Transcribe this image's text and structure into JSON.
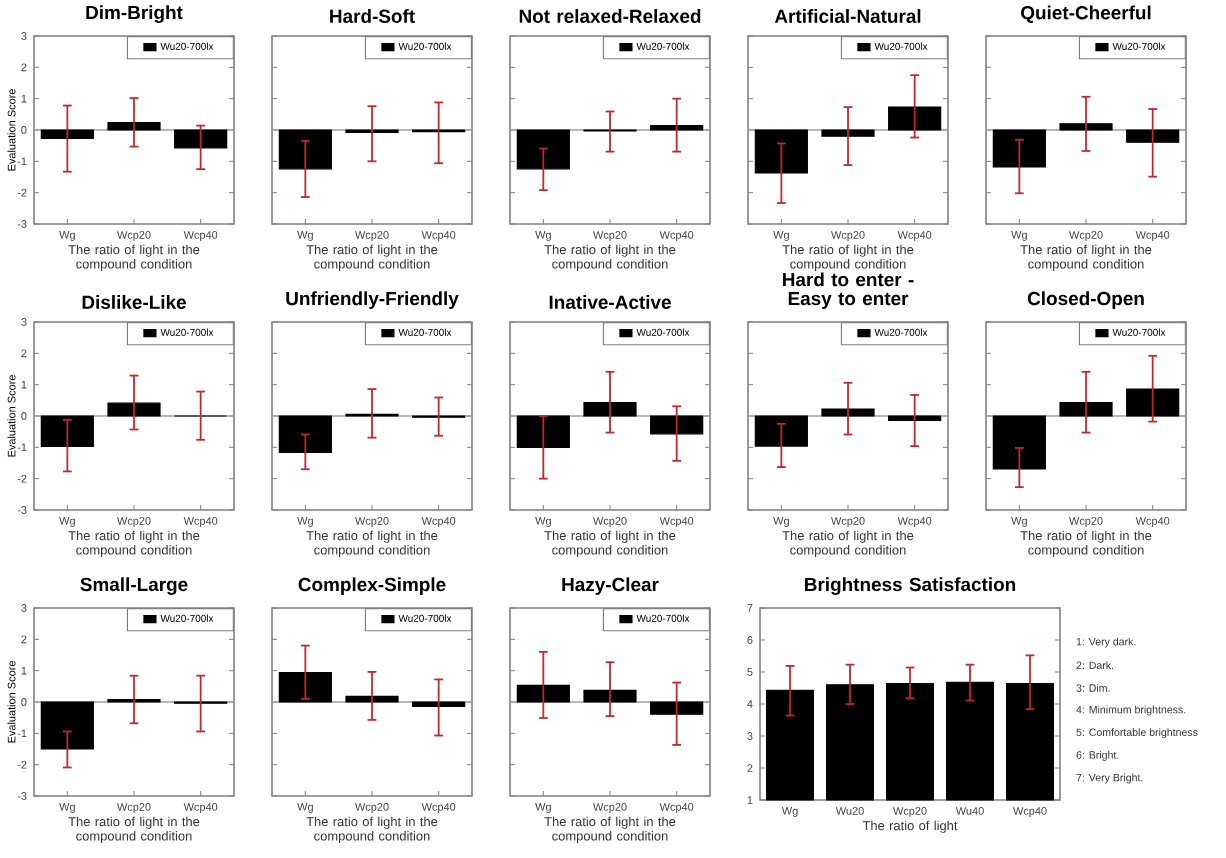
{
  "chart_data": [
    {
      "type": "bar",
      "title": "Dim-Bright",
      "xlabel": "The ratio of light in the compound condition",
      "ylabel": "Evaluation Score",
      "categories": [
        "Wg",
        "Wcp20",
        "Wcp40"
      ],
      "ylim": [
        -3,
        3
      ],
      "yticks": [
        -3,
        -2,
        -1,
        0,
        1,
        2,
        3
      ],
      "legend": "top right",
      "ref_lines": [
        {
          "axis": "y",
          "value": 0,
          "color": "#a0a0a0"
        }
      ],
      "series": [
        {
          "name": "Wu20-700lx",
          "color": "#000000",
          "values": [
            -0.27,
            0.24,
            -0.57
          ],
          "errors": [
            [
              -1.33,
              0.78
            ],
            [
              -0.53,
              1.02
            ],
            [
              -1.25,
              0.14
            ]
          ]
        }
      ]
    },
    {
      "type": "bar",
      "title": "Hard-Soft",
      "xlabel": "The ratio of light in the compound condition",
      "categories": [
        "Wg",
        "Wcp20",
        "Wcp40"
      ],
      "ylim": [
        -3,
        3
      ],
      "yticks": [
        -3,
        -2,
        -1,
        0,
        1,
        2,
        3
      ],
      "tick_labels": "x",
      "legend": "top right",
      "ref_lines": [
        {
          "axis": "y",
          "value": 0,
          "color": "#a0a0a0"
        }
      ],
      "series": [
        {
          "name": "Wu20-700lx",
          "color": "#000000",
          "values": [
            -1.24,
            -0.08,
            -0.05
          ],
          "errors": [
            [
              -2.14,
              -0.35
            ],
            [
              -1.0,
              0.76
            ],
            [
              -1.06,
              0.88
            ]
          ]
        }
      ]
    },
    {
      "type": "bar",
      "title": "Not relaxed-Relaxed",
      "xlabel": "The ratio of light in the compound condition",
      "categories": [
        "Wg",
        "Wcp20",
        "Wcp40"
      ],
      "ylim": [
        -3,
        3
      ],
      "yticks": [
        -3,
        -2,
        -1,
        0,
        1,
        2,
        3
      ],
      "tick_labels": "x",
      "legend": "top right",
      "ref_lines": [
        {
          "axis": "y",
          "value": 0,
          "color": "#a0a0a0"
        }
      ],
      "series": [
        {
          "name": "Wu20-700lx",
          "color": "#000000",
          "values": [
            -1.24,
            -0.03,
            0.14
          ],
          "errors": [
            [
              -1.92,
              -0.59
            ],
            [
              -0.69,
              0.59
            ],
            [
              -0.69,
              1.0
            ]
          ]
        }
      ]
    },
    {
      "type": "bar",
      "title": "Artificial-Natural",
      "xlabel": "The ratio of light in the compound condition",
      "categories": [
        "Wg",
        "Wcp20",
        "Wcp40"
      ],
      "ylim": [
        -3,
        3
      ],
      "yticks": [
        -3,
        -2,
        -1,
        0,
        1,
        2,
        3
      ],
      "tick_labels": "x",
      "legend": "top right",
      "ref_lines": [
        {
          "axis": "y",
          "value": 0,
          "color": "#a0a0a0"
        }
      ],
      "series": [
        {
          "name": "Wu20-700lx",
          "color": "#000000",
          "values": [
            -1.37,
            -0.2,
            0.73
          ],
          "errors": [
            [
              -2.33,
              -0.43
            ],
            [
              -1.12,
              0.73
            ],
            [
              -0.24,
              1.75
            ]
          ]
        }
      ]
    },
    {
      "type": "bar",
      "title": "Quiet-Cheerful",
      "xlabel": "The ratio of light in the compound condition",
      "categories": [
        "Wg",
        "Wcp20",
        "Wcp40"
      ],
      "ylim": [
        -3,
        3
      ],
      "yticks": [
        -3,
        -2,
        -1,
        0,
        1,
        2,
        3
      ],
      "tick_labels": "x",
      "legend": "top right",
      "ref_lines": [
        {
          "axis": "y",
          "value": 0,
          "color": "#a0a0a0"
        }
      ],
      "series": [
        {
          "name": "Wu20-700lx",
          "color": "#000000",
          "values": [
            -1.18,
            0.2,
            -0.39
          ],
          "errors": [
            [
              -2.02,
              -0.31
            ],
            [
              -0.67,
              1.06
            ],
            [
              -1.49,
              0.67
            ]
          ]
        }
      ]
    },
    {
      "type": "bar",
      "title": "Dislike-Like",
      "xlabel": "The ratio of light in the compound condition",
      "ylabel": "Evaluation Score",
      "categories": [
        "Wg",
        "Wcp20",
        "Wcp40"
      ],
      "ylim": [
        -3,
        3
      ],
      "yticks": [
        -3,
        -2,
        -1,
        0,
        1,
        2,
        3
      ],
      "legend": "top right",
      "ref_lines": [
        {
          "axis": "y",
          "value": 0,
          "color": "#a0a0a0"
        }
      ],
      "series": [
        {
          "name": "Wu20-700lx",
          "color": "#000000",
          "values": [
            -0.97,
            0.41,
            0.0
          ],
          "errors": [
            [
              -1.77,
              -0.12
            ],
            [
              -0.43,
              1.29
            ],
            [
              -0.76,
              0.78
            ]
          ]
        }
      ]
    },
    {
      "type": "bar",
      "title": "Unfriendly-Friendly",
      "xlabel": "The ratio of light in the compound condition",
      "categories": [
        "Wg",
        "Wcp20",
        "Wcp40"
      ],
      "ylim": [
        -3,
        3
      ],
      "yticks": [
        -3,
        -2,
        -1,
        0,
        1,
        2,
        3
      ],
      "tick_labels": "x",
      "legend": "top right",
      "ref_lines": [
        {
          "axis": "y",
          "value": 0,
          "color": "#a0a0a0"
        }
      ],
      "series": [
        {
          "name": "Wu20-700lx",
          "color": "#000000",
          "values": [
            -1.16,
            0.05,
            -0.04
          ],
          "errors": [
            [
              -1.7,
              -0.59
            ],
            [
              -0.69,
              0.86
            ],
            [
              -0.63,
              0.59
            ]
          ]
        }
      ]
    },
    {
      "type": "bar",
      "title": "Inative-Active",
      "xlabel": "The ratio of light in the compound condition",
      "categories": [
        "Wg",
        "Wcp20",
        "Wcp40"
      ],
      "ylim": [
        -3,
        3
      ],
      "yticks": [
        -3,
        -2,
        -1,
        0,
        1,
        2,
        3
      ],
      "tick_labels": "x",
      "legend": "top right",
      "ref_lines": [
        {
          "axis": "y",
          "value": 0,
          "color": "#a0a0a0"
        }
      ],
      "series": [
        {
          "name": "Wu20-700lx",
          "color": "#000000",
          "values": [
            -1.0,
            0.43,
            -0.57
          ],
          "errors": [
            [
              -2.0,
              0.0
            ],
            [
              -0.53,
              1.41
            ],
            [
              -1.43,
              0.31
            ]
          ]
        }
      ]
    },
    {
      "type": "bar",
      "title": "Hard to enter -Easy to enter",
      "xlabel": "The ratio of light in the compound condition",
      "categories": [
        "Wg",
        "Wcp20",
        "Wcp40"
      ],
      "ylim": [
        -3,
        3
      ],
      "yticks": [
        -3,
        -2,
        -1,
        0,
        1,
        2,
        3
      ],
      "tick_labels": "x",
      "legend": "top right",
      "ref_lines": [
        {
          "axis": "y",
          "value": 0,
          "color": "#a0a0a0"
        }
      ],
      "series": [
        {
          "name": "Wu20-700lx",
          "color": "#000000",
          "values": [
            -0.96,
            0.22,
            -0.14
          ],
          "errors": [
            [
              -1.63,
              -0.25
            ],
            [
              -0.59,
              1.06
            ],
            [
              -0.96,
              0.67
            ]
          ]
        }
      ]
    },
    {
      "type": "bar",
      "title": "Closed-Open",
      "xlabel": "The ratio of light in the compound condition",
      "categories": [
        "Wg",
        "Wcp20",
        "Wcp40"
      ],
      "ylim": [
        -3,
        3
      ],
      "yticks": [
        -3,
        -2,
        -1,
        0,
        1,
        2,
        3
      ],
      "tick_labels": "x",
      "legend": "top right",
      "ref_lines": [
        {
          "axis": "y",
          "value": 0,
          "color": "#a0a0a0"
        }
      ],
      "series": [
        {
          "name": "Wu20-700lx",
          "color": "#000000",
          "values": [
            -1.69,
            0.43,
            0.86
          ],
          "errors": [
            [
              -2.27,
              -1.02
            ],
            [
              -0.53,
              1.41
            ],
            [
              -0.18,
              1.92
            ]
          ]
        }
      ]
    },
    {
      "type": "bar",
      "title": "Small-Large",
      "xlabel": "The ratio of light in the compound condition",
      "ylabel": "Evaluation Score",
      "categories": [
        "Wg",
        "Wcp20",
        "Wcp40"
      ],
      "ylim": [
        -3,
        3
      ],
      "yticks": [
        -3,
        -2,
        -1,
        0,
        1,
        2,
        3
      ],
      "legend": "top right",
      "ref_lines": [
        {
          "axis": "y",
          "value": 0,
          "color": "#a0a0a0"
        }
      ],
      "series": [
        {
          "name": "Wu20-700lx",
          "color": "#000000",
          "values": [
            -1.5,
            0.08,
            -0.04
          ],
          "errors": [
            [
              -2.09,
              -0.94
            ],
            [
              -0.68,
              0.84
            ],
            [
              -0.94,
              0.84
            ]
          ]
        }
      ]
    },
    {
      "type": "bar",
      "title": "Complex-Simple",
      "xlabel": "The ratio of light in the compound condition",
      "categories": [
        "Wg",
        "Wcp20",
        "Wcp40"
      ],
      "ylim": [
        -3,
        3
      ],
      "yticks": [
        -3,
        -2,
        -1,
        0,
        1,
        2,
        3
      ],
      "tick_labels": "x",
      "legend": "top right",
      "ref_lines": [
        {
          "axis": "y",
          "value": 0,
          "color": "#a0a0a0"
        }
      ],
      "series": [
        {
          "name": "Wu20-700lx",
          "color": "#000000",
          "values": [
            0.94,
            0.18,
            -0.14
          ],
          "errors": [
            [
              0.1,
              1.8
            ],
            [
              -0.57,
              0.96
            ],
            [
              -1.07,
              0.72
            ]
          ]
        }
      ]
    },
    {
      "type": "bar",
      "title": "Hazy-Clear",
      "xlabel": "The ratio of light in the compound condition",
      "categories": [
        "Wg",
        "Wcp20",
        "Wcp40"
      ],
      "ylim": [
        -3,
        3
      ],
      "yticks": [
        -3,
        -2,
        -1,
        0,
        1,
        2,
        3
      ],
      "tick_labels": "x",
      "legend": "top right",
      "ref_lines": [
        {
          "axis": "y",
          "value": 0,
          "color": "#a0a0a0"
        }
      ],
      "series": [
        {
          "name": "Wu20-700lx",
          "color": "#000000",
          "values": [
            0.53,
            0.37,
            -0.39
          ],
          "errors": [
            [
              -0.51,
              1.6
            ],
            [
              -0.45,
              1.27
            ],
            [
              -1.37,
              0.62
            ]
          ]
        }
      ]
    },
    {
      "type": "bar",
      "title": "Brightness Satisfaction",
      "xlabel": "The ratio of light",
      "categories": [
        "Wg",
        "Wu20",
        "Wcp20",
        "Wu40",
        "Wcp40"
      ],
      "ylim": [
        1,
        7
      ],
      "yticks": [
        1,
        2,
        3,
        4,
        5,
        6,
        7
      ],
      "series": [
        {
          "color": "#000000",
          "values": [
            4.43,
            4.6,
            4.64,
            4.68,
            4.64
          ],
          "errors": [
            [
              3.64,
              5.19
            ],
            [
              4.0,
              5.23
            ],
            [
              4.18,
              5.14
            ],
            [
              4.11,
              5.23
            ],
            [
              3.84,
              5.52
            ]
          ]
        }
      ],
      "annotations": [
        "1: Very dark.",
        "2: Dark.",
        "3: Dim.",
        "4: Minimum brightness.",
        "5: Comfortable brightness",
        "6: Bright.",
        "7: Very Bright."
      ]
    }
  ]
}
